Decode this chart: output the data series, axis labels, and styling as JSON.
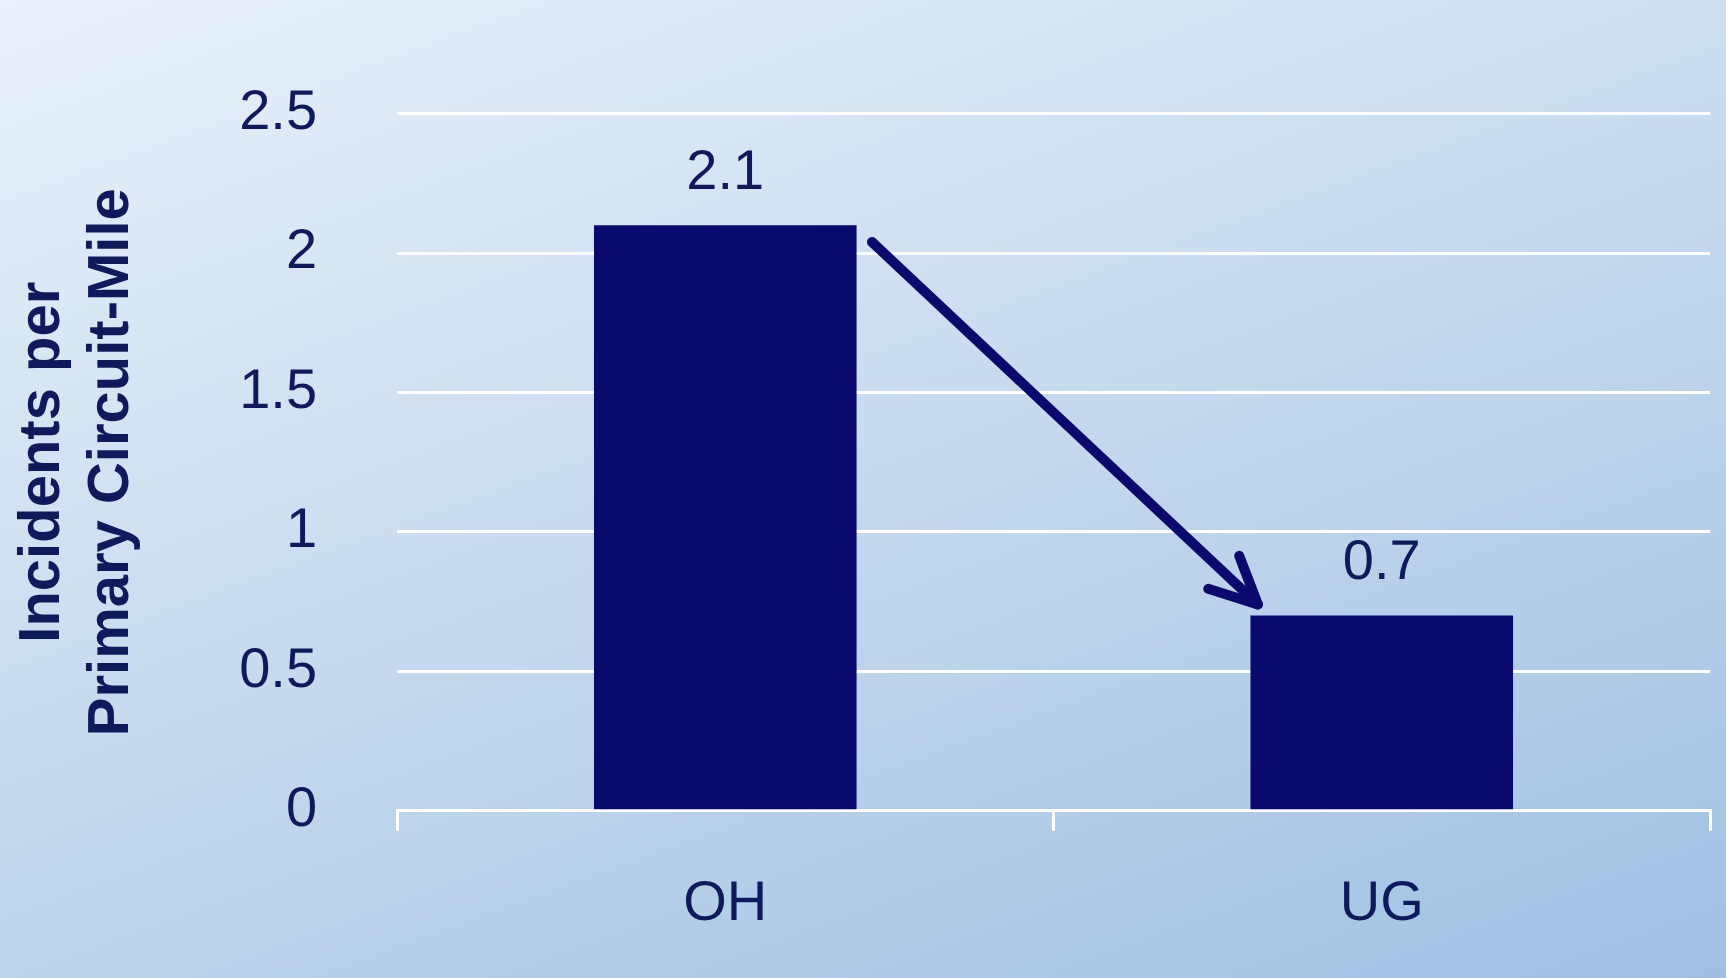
{
  "chart_data": {
    "type": "bar",
    "ylabel": "Incidents per\nPrimary Circuit-Mile",
    "categories": [
      "OH",
      "UG"
    ],
    "values": [
      2.1,
      0.7
    ],
    "color": "#0a0a6e",
    "ylim": [
      0,
      2.5
    ],
    "yticks": [
      0,
      0.5,
      1,
      1.5,
      2,
      2.5
    ],
    "grid": "y",
    "data_labels": true,
    "legend": false
  }
}
